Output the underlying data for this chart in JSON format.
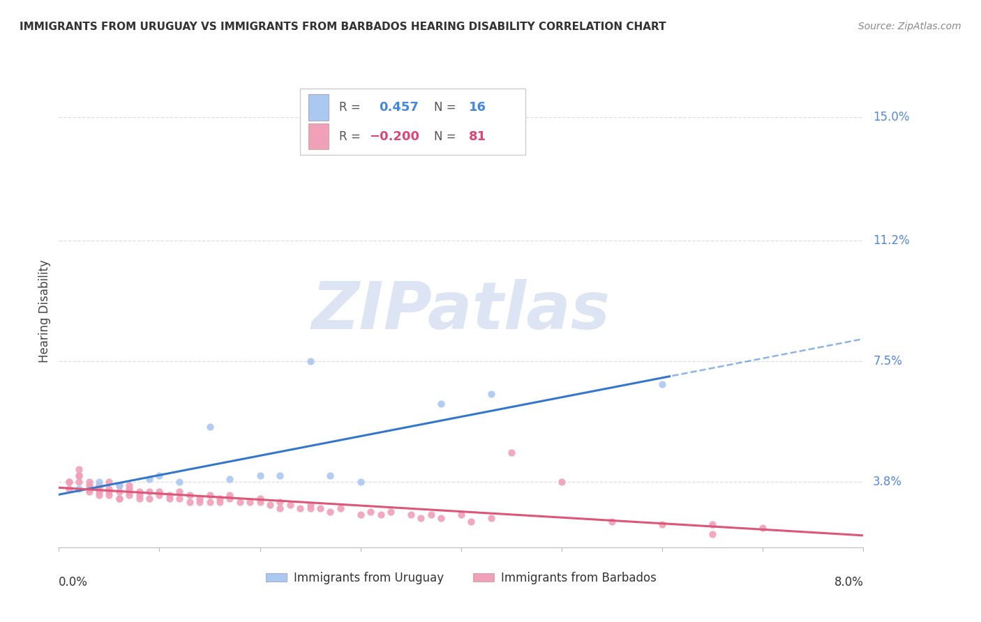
{
  "title": "IMMIGRANTS FROM URUGUAY VS IMMIGRANTS FROM BARBADOS HEARING DISABILITY CORRELATION CHART",
  "source": "Source: ZipAtlas.com",
  "ylabel": "Hearing Disability",
  "y_ticks": [
    0.038,
    0.075,
    0.112,
    0.15
  ],
  "y_tick_labels": [
    "3.8%",
    "7.5%",
    "11.2%",
    "15.0%"
  ],
  "xlim": [
    0.0,
    0.08
  ],
  "ylim": [
    0.018,
    0.163
  ],
  "uruguay_R": 0.457,
  "uruguay_N": 16,
  "barbados_R": -0.2,
  "barbados_N": 81,
  "uruguay_color": "#aac8f0",
  "barbados_color": "#f0a0b8",
  "uruguay_line_color": "#3377cc",
  "barbados_line_color": "#dd5577",
  "grid_color": "#ddddee",
  "background_color": "#ffffff",
  "watermark_text": "ZIPatlas",
  "legend_label_uruguay": "Immigrants from Uruguay",
  "legend_label_barbados": "Immigrants from Barbados",
  "uruguay_x": [
    0.002,
    0.004,
    0.006,
    0.009,
    0.01,
    0.012,
    0.015,
    0.017,
    0.02,
    0.022,
    0.025,
    0.027,
    0.03,
    0.038,
    0.043,
    0.06
  ],
  "uruguay_y": [
    0.036,
    0.038,
    0.037,
    0.039,
    0.04,
    0.038,
    0.055,
    0.039,
    0.04,
    0.04,
    0.075,
    0.04,
    0.038,
    0.062,
    0.065,
    0.068
  ],
  "barbados_x": [
    0.001,
    0.001,
    0.002,
    0.002,
    0.002,
    0.003,
    0.003,
    0.003,
    0.003,
    0.004,
    0.004,
    0.004,
    0.005,
    0.005,
    0.005,
    0.006,
    0.006,
    0.006,
    0.007,
    0.007,
    0.007,
    0.008,
    0.008,
    0.009,
    0.009,
    0.01,
    0.01,
    0.011,
    0.011,
    0.012,
    0.012,
    0.013,
    0.013,
    0.014,
    0.014,
    0.015,
    0.015,
    0.016,
    0.016,
    0.017,
    0.017,
    0.018,
    0.019,
    0.02,
    0.02,
    0.021,
    0.022,
    0.022,
    0.023,
    0.024,
    0.025,
    0.025,
    0.026,
    0.027,
    0.028,
    0.03,
    0.031,
    0.032,
    0.033,
    0.035,
    0.036,
    0.037,
    0.038,
    0.04,
    0.041,
    0.043,
    0.045,
    0.05,
    0.055,
    0.06,
    0.065,
    0.07,
    0.001,
    0.002,
    0.003,
    0.004,
    0.005,
    0.006,
    0.007,
    0.008,
    0.065
  ],
  "barbados_y": [
    0.038,
    0.038,
    0.042,
    0.04,
    0.038,
    0.037,
    0.038,
    0.036,
    0.035,
    0.035,
    0.037,
    0.036,
    0.035,
    0.038,
    0.036,
    0.035,
    0.037,
    0.033,
    0.036,
    0.037,
    0.034,
    0.035,
    0.034,
    0.035,
    0.033,
    0.034,
    0.035,
    0.033,
    0.034,
    0.033,
    0.035,
    0.032,
    0.034,
    0.032,
    0.033,
    0.032,
    0.034,
    0.033,
    0.032,
    0.034,
    0.033,
    0.032,
    0.032,
    0.032,
    0.033,
    0.031,
    0.032,
    0.03,
    0.031,
    0.03,
    0.03,
    0.031,
    0.03,
    0.029,
    0.03,
    0.028,
    0.029,
    0.028,
    0.029,
    0.028,
    0.027,
    0.028,
    0.027,
    0.028,
    0.026,
    0.027,
    0.047,
    0.038,
    0.026,
    0.025,
    0.025,
    0.024,
    0.036,
    0.04,
    0.036,
    0.034,
    0.034,
    0.033,
    0.035,
    0.033,
    0.022
  ]
}
